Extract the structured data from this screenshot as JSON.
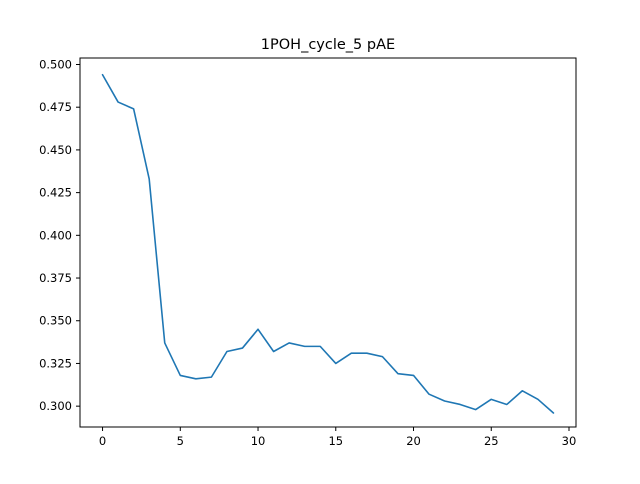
{
  "chart_data": {
    "type": "line",
    "title": "1POH_cycle_5 pAE",
    "xlabel": "",
    "ylabel": "",
    "xlim": [
      -1.45,
      30.45
    ],
    "ylim": [
      0.2878,
      0.5038
    ],
    "x_ticks": [
      0,
      5,
      10,
      15,
      20,
      25,
      30
    ],
    "x_tick_labels": [
      "0",
      "5",
      "10",
      "15",
      "20",
      "25",
      "30"
    ],
    "y_ticks": [
      0.3,
      0.325,
      0.35,
      0.375,
      0.4,
      0.425,
      0.45,
      0.475,
      0.5
    ],
    "y_tick_labels": [
      "0.300",
      "0.325",
      "0.350",
      "0.375",
      "0.400",
      "0.425",
      "0.450",
      "0.475",
      "0.500"
    ],
    "grid": false,
    "legend": "none",
    "series": [
      {
        "color": "#1f77b4",
        "x": [
          0,
          1,
          2,
          3,
          4,
          5,
          6,
          7,
          8,
          9,
          10,
          11,
          12,
          13,
          14,
          15,
          16,
          17,
          18,
          19,
          20,
          21,
          22,
          23,
          24,
          25,
          26,
          27,
          28,
          29
        ],
        "y": [
          0.494,
          0.478,
          0.474,
          0.433,
          0.337,
          0.318,
          0.316,
          0.317,
          0.332,
          0.334,
          0.345,
          0.332,
          0.337,
          0.335,
          0.335,
          0.325,
          0.331,
          0.331,
          0.329,
          0.319,
          0.318,
          0.307,
          0.303,
          0.301,
          0.298,
          0.304,
          0.301,
          0.309,
          0.304,
          0.296
        ]
      }
    ]
  }
}
